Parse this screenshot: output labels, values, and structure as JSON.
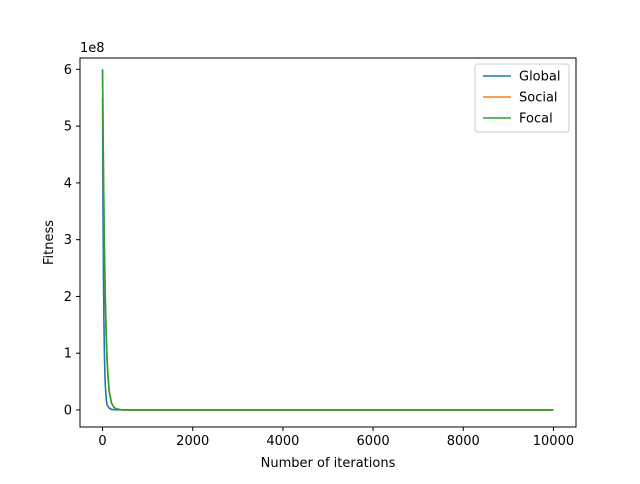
{
  "chart_data": {
    "type": "line",
    "xlabel": "Number of iterations",
    "ylabel": "Fitness",
    "y_offset_label": "1e8",
    "xlim": [
      -500,
      10500
    ],
    "ylim": [
      -0.3,
      6.2
    ],
    "y_scale_factor": 100000000,
    "x_ticks": [
      0,
      2000,
      4000,
      6000,
      8000,
      10000
    ],
    "x_tick_labels": [
      "0",
      "2000",
      "4000",
      "6000",
      "8000",
      "10000"
    ],
    "y_ticks": [
      0,
      1,
      2,
      3,
      4,
      5,
      6
    ],
    "y_tick_labels": [
      "0",
      "1",
      "2",
      "3",
      "4",
      "5",
      "6"
    ],
    "grid": false,
    "legend_position": "top-right",
    "series": [
      {
        "name": "Global",
        "color": "#1f77b4",
        "x": [
          0,
          10,
          20,
          30,
          40,
          50,
          60,
          80,
          100,
          150,
          200,
          300,
          500,
          1000,
          10000
        ],
        "y": [
          5.5,
          3.6,
          2.4,
          1.6,
          1.05,
          0.7,
          0.46,
          0.2,
          0.09,
          0.03,
          0.01,
          0.003,
          0,
          0,
          0
        ]
      },
      {
        "name": "Social",
        "color": "#ff7f0e",
        "x": [
          0,
          20,
          40,
          60,
          80,
          100,
          120,
          150,
          200,
          250,
          300,
          400,
          500,
          1000,
          10000
        ],
        "y": [
          6.0,
          4.2,
          2.9,
          2.0,
          1.35,
          0.9,
          0.6,
          0.32,
          0.12,
          0.05,
          0.02,
          0.005,
          0,
          0,
          0
        ]
      },
      {
        "name": "Focal",
        "color": "#2ca02c",
        "x": [
          0,
          20,
          40,
          60,
          80,
          100,
          120,
          150,
          200,
          250,
          300,
          400,
          500,
          1000,
          10000
        ],
        "y": [
          6.0,
          4.2,
          2.9,
          2.0,
          1.35,
          0.9,
          0.6,
          0.32,
          0.12,
          0.05,
          0.02,
          0.005,
          0,
          0,
          0
        ]
      }
    ]
  }
}
